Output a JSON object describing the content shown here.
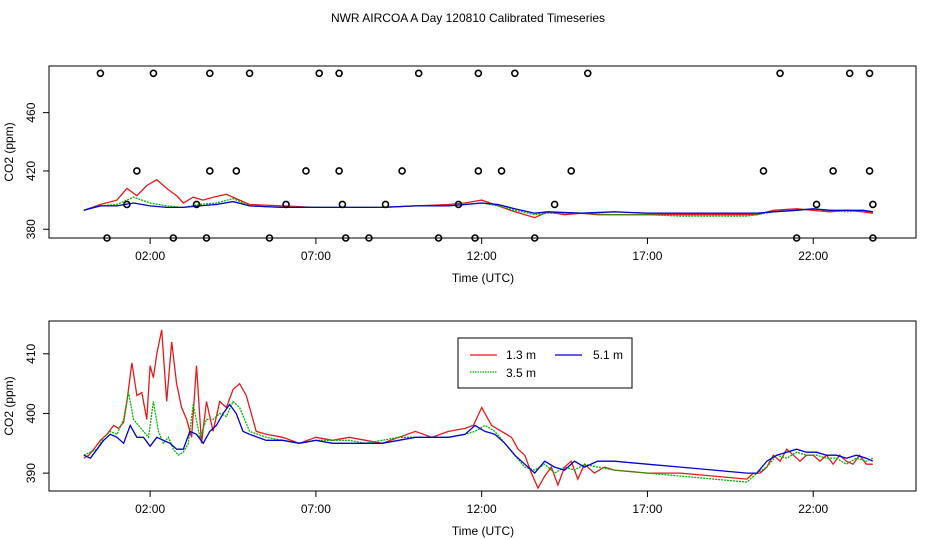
{
  "title": "NWR AIRCOA A  Day 120810  Calibrated Timeseries",
  "colors": {
    "s1": "#e31a1c",
    "s2": "#00b400",
    "s3": "#0000cc"
  },
  "chart_data": [
    {
      "type": "line",
      "id": "top",
      "xlabel": "Time (UTC)",
      "ylabel": "CO2 (ppm)",
      "x_unit": "hours UTC",
      "xlim": [
        -1.05,
        25.1
      ],
      "ylim": [
        374,
        492
      ],
      "x_ticks": [
        2,
        7,
        12,
        17,
        22
      ],
      "x_tick_labels": [
        "02:00",
        "07:00",
        "12:00",
        "17:00",
        "22:00"
      ],
      "y_ticks": [
        380,
        420,
        460
      ],
      "y_tick_labels": [
        "380",
        "420",
        "460"
      ],
      "series": [
        {
          "name": "1.3 m",
          "color": "#e31a1c",
          "x": [
            0,
            0.5,
            1,
            1.3,
            1.6,
            1.9,
            2.2,
            2.5,
            2.8,
            3.0,
            3.3,
            3.6,
            3.9,
            4.3,
            4.7,
            5,
            6,
            7,
            8,
            9,
            10,
            11,
            11.5,
            12,
            12.5,
            13,
            13.6,
            14,
            14.5,
            15,
            15.5,
            16,
            17,
            18,
            19,
            20,
            20.3,
            20.8,
            21.5,
            22,
            22.5,
            23,
            23.5,
            23.8
          ],
          "y": [
            393,
            397,
            400,
            408,
            403,
            410,
            414,
            408,
            403,
            398,
            402,
            400,
            402,
            404,
            400,
            397,
            396,
            395,
            395,
            395,
            396,
            397,
            398,
            400,
            396,
            392,
            388,
            392,
            390,
            391,
            390,
            390,
            390,
            390,
            390,
            390,
            390,
            393,
            394,
            393,
            392,
            393,
            392,
            391
          ]
        },
        {
          "name": "3.5 m",
          "color": "#00b400",
          "x": [
            0,
            0.5,
            1,
            1.5,
            2,
            2.5,
            3,
            3.5,
            4,
            4.5,
            5,
            6,
            7,
            8,
            9,
            10,
            11,
            11.5,
            12,
            12.5,
            13,
            13.6,
            14,
            15,
            16,
            17,
            18,
            19,
            20,
            20.3,
            20.8,
            21.5,
            22,
            22.5,
            23,
            23.5,
            23.8
          ],
          "y": [
            393,
            396,
            397,
            402,
            398,
            396,
            395,
            397,
            398,
            401,
            396,
            395,
            395,
            395,
            395,
            396,
            396,
            397,
            398,
            396,
            393,
            390,
            391,
            391,
            390,
            390,
            389,
            389,
            389,
            390,
            392,
            393,
            394,
            393,
            392,
            393,
            392
          ]
        },
        {
          "name": "5.1 m",
          "color": "#0000cc",
          "x": [
            0,
            0.5,
            1,
            1.5,
            2,
            2.5,
            3,
            3.5,
            4,
            4.5,
            5,
            6,
            7,
            8,
            9,
            10,
            11,
            11.5,
            12,
            12.5,
            13,
            13.6,
            14,
            15,
            16,
            17,
            18,
            19,
            20,
            20.3,
            20.8,
            21.5,
            22,
            22.5,
            23,
            23.5,
            23.8
          ],
          "y": [
            393,
            396,
            396,
            398,
            396,
            395,
            395,
            396,
            397,
            399,
            396,
            395,
            395,
            395,
            395,
            396,
            396,
            397,
            398,
            397,
            394,
            391,
            392,
            391,
            392,
            391,
            391,
            391,
            391,
            391,
            392,
            393,
            394,
            393,
            393,
            393,
            392
          ]
        }
      ],
      "points": {
        "marker": "open-circle",
        "x": [
          0.5,
          2.1,
          3.8,
          5,
          7.1,
          7.7,
          10.1,
          11.9,
          13,
          15.2,
          21,
          23.1,
          23.7,
          1.6,
          3.8,
          4.6,
          6.7,
          7.7,
          9.6,
          11.9,
          12.6,
          14.7,
          20.5,
          22.6,
          23.7,
          1.3,
          3.4,
          6.1,
          7.8,
          9.1,
          11.3,
          14.2,
          22.1,
          23.8,
          0.7,
          2.7,
          3.7,
          5.6,
          7.9,
          8.6,
          10.7,
          11.8,
          13.6,
          21.5,
          23.8
        ],
        "y": [
          487,
          487,
          487,
          487,
          487,
          487,
          487,
          487,
          487,
          487,
          487,
          487,
          487,
          420,
          420,
          420,
          420,
          420,
          420,
          420,
          420,
          420,
          420,
          420,
          420,
          397,
          397,
          397,
          397,
          397,
          397,
          397,
          397,
          397,
          374,
          374,
          374,
          374,
          374,
          374,
          374,
          374,
          374,
          374,
          374
        ]
      }
    },
    {
      "type": "line",
      "id": "bottom",
      "xlabel": "Time (UTC)",
      "ylabel": "CO2 (ppm)",
      "x_unit": "hours UTC",
      "xlim": [
        -1.05,
        25.1
      ],
      "ylim": [
        387,
        415.5
      ],
      "x_ticks": [
        2,
        7,
        12,
        17,
        22
      ],
      "x_tick_labels": [
        "02:00",
        "07:00",
        "12:00",
        "17:00",
        "22:00"
      ],
      "y_ticks": [
        390,
        400,
        410
      ],
      "y_tick_labels": [
        "390",
        "400",
        "410"
      ],
      "legend": {
        "placement": "top-center",
        "entries": [
          "1.3 m",
          "5.1 m",
          "3.5 m"
        ]
      },
      "series": [
        {
          "name": "1.3 m",
          "color": "#e31a1c",
          "x": [
            0,
            0.15,
            0.3,
            0.5,
            0.7,
            0.9,
            1.05,
            1.2,
            1.3,
            1.45,
            1.6,
            1.75,
            1.9,
            2.0,
            2.1,
            2.2,
            2.35,
            2.5,
            2.65,
            2.8,
            2.95,
            3.1,
            3.25,
            3.4,
            3.55,
            3.7,
            3.9,
            4.1,
            4.3,
            4.5,
            4.7,
            4.9,
            5.2,
            5.5,
            6,
            6.5,
            7,
            7.5,
            8,
            8.5,
            9,
            9.5,
            10,
            10.5,
            11,
            11.5,
            11.75,
            12.0,
            12.3,
            12.6,
            12.9,
            13.1,
            13.3,
            13.5,
            13.7,
            13.9,
            14.1,
            14.3,
            14.5,
            14.7,
            14.9,
            15.1,
            15.4,
            15.7,
            16,
            17,
            18,
            19,
            20,
            20.2,
            20.4,
            20.6,
            20.8,
            21.0,
            21.2,
            21.4,
            21.6,
            21.8,
            22,
            22.2,
            22.4,
            22.6,
            22.8,
            23.0,
            23.2,
            23.4,
            23.6,
            23.8
          ],
          "y": [
            392.5,
            393,
            394,
            395.5,
            396.5,
            398,
            397.5,
            398.5,
            402,
            408.5,
            403,
            403.5,
            399,
            408,
            406,
            410,
            414,
            402,
            412,
            405,
            401,
            399,
            396,
            408,
            395,
            402,
            397,
            402,
            401,
            404,
            405,
            403,
            397,
            396.5,
            396,
            395,
            396,
            395.5,
            396,
            395.5,
            395,
            396,
            397,
            396,
            397,
            397.5,
            398,
            401,
            398,
            397,
            396,
            394,
            393,
            390,
            387.5,
            389.5,
            391,
            388,
            391,
            392,
            389,
            391.5,
            390,
            391,
            390.5,
            390,
            390,
            389.5,
            389,
            390,
            390,
            391,
            393,
            392,
            394,
            393,
            392,
            393,
            393,
            392,
            393,
            391.5,
            393,
            392,
            391.5,
            393,
            391.5,
            391.5
          ]
        },
        {
          "name": "3.5 m",
          "color": "#00b400",
          "x": [
            0,
            0.2,
            0.4,
            0.6,
            0.8,
            1.0,
            1.2,
            1.35,
            1.5,
            1.65,
            1.8,
            1.95,
            2.1,
            2.25,
            2.4,
            2.55,
            2.7,
            2.85,
            3.0,
            3.15,
            3.3,
            3.5,
            3.7,
            3.9,
            4.1,
            4.3,
            4.5,
            4.7,
            5,
            5.5,
            6,
            6.5,
            7,
            7.5,
            8,
            8.5,
            9,
            9.5,
            10,
            10.5,
            11,
            11.5,
            11.8,
            12.1,
            12.4,
            12.7,
            13,
            13.3,
            13.6,
            13.9,
            14.2,
            14.5,
            14.8,
            15.1,
            15.5,
            16,
            17,
            18,
            19,
            20,
            20.3,
            20.6,
            20.9,
            21.2,
            21.5,
            21.8,
            22.1,
            22.4,
            22.7,
            23.0,
            23.3,
            23.6,
            23.8
          ],
          "y": [
            393,
            393.5,
            394,
            396,
            397,
            396.5,
            399,
            403.5,
            399,
            398,
            397,
            396,
            402,
            397,
            395,
            396,
            394,
            393,
            393.5,
            395,
            401.5,
            396,
            399,
            399,
            400,
            399.5,
            402,
            401,
            397,
            396,
            395.5,
            395,
            395.5,
            395.5,
            395.5,
            395,
            395.5,
            396,
            396,
            396,
            396,
            396.5,
            397,
            398,
            397,
            395,
            393,
            391,
            390.5,
            391.5,
            390,
            391,
            390.5,
            391.5,
            391,
            390.5,
            390,
            389.5,
            389,
            388.5,
            390,
            391,
            393,
            392.5,
            393.5,
            393,
            393,
            392.5,
            392.5,
            391.5,
            392.5,
            392,
            392.5
          ]
        },
        {
          "name": "5.1 m",
          "color": "#0000cc",
          "x": [
            0,
            0.2,
            0.4,
            0.6,
            0.8,
            1.0,
            1.2,
            1.4,
            1.6,
            1.8,
            2.0,
            2.2,
            2.4,
            2.6,
            2.8,
            3.0,
            3.2,
            3.4,
            3.6,
            3.8,
            4.0,
            4.2,
            4.4,
            4.6,
            4.8,
            5,
            5.5,
            6,
            6.5,
            7,
            7.5,
            8,
            8.5,
            9,
            9.5,
            10,
            10.5,
            11,
            11.5,
            11.8,
            12.1,
            12.4,
            12.7,
            13,
            13.3,
            13.6,
            13.9,
            14.2,
            14.5,
            14.8,
            15.1,
            15.5,
            16,
            17,
            18,
            19,
            20,
            20.3,
            20.6,
            20.9,
            21.2,
            21.5,
            21.8,
            22.1,
            22.4,
            22.7,
            23.0,
            23.3,
            23.6,
            23.8
          ],
          "y": [
            393,
            392.5,
            394,
            395.5,
            396.5,
            396,
            395,
            398,
            396,
            396,
            394.5,
            396,
            395.5,
            395,
            394,
            394,
            397,
            396.5,
            395,
            397,
            398,
            400,
            401.5,
            400,
            397,
            396.5,
            395.5,
            395.5,
            395,
            395.5,
            395,
            395,
            395,
            395,
            395.5,
            396,
            396,
            396,
            396.5,
            398,
            397,
            396.5,
            395,
            393,
            391.5,
            390,
            392,
            391,
            390.5,
            392,
            391,
            392,
            392,
            391.5,
            391,
            390.5,
            390,
            390,
            392,
            393,
            393.5,
            394,
            393.5,
            393.5,
            393,
            393,
            392.5,
            393,
            392.5,
            392
          ]
        }
      ]
    }
  ]
}
